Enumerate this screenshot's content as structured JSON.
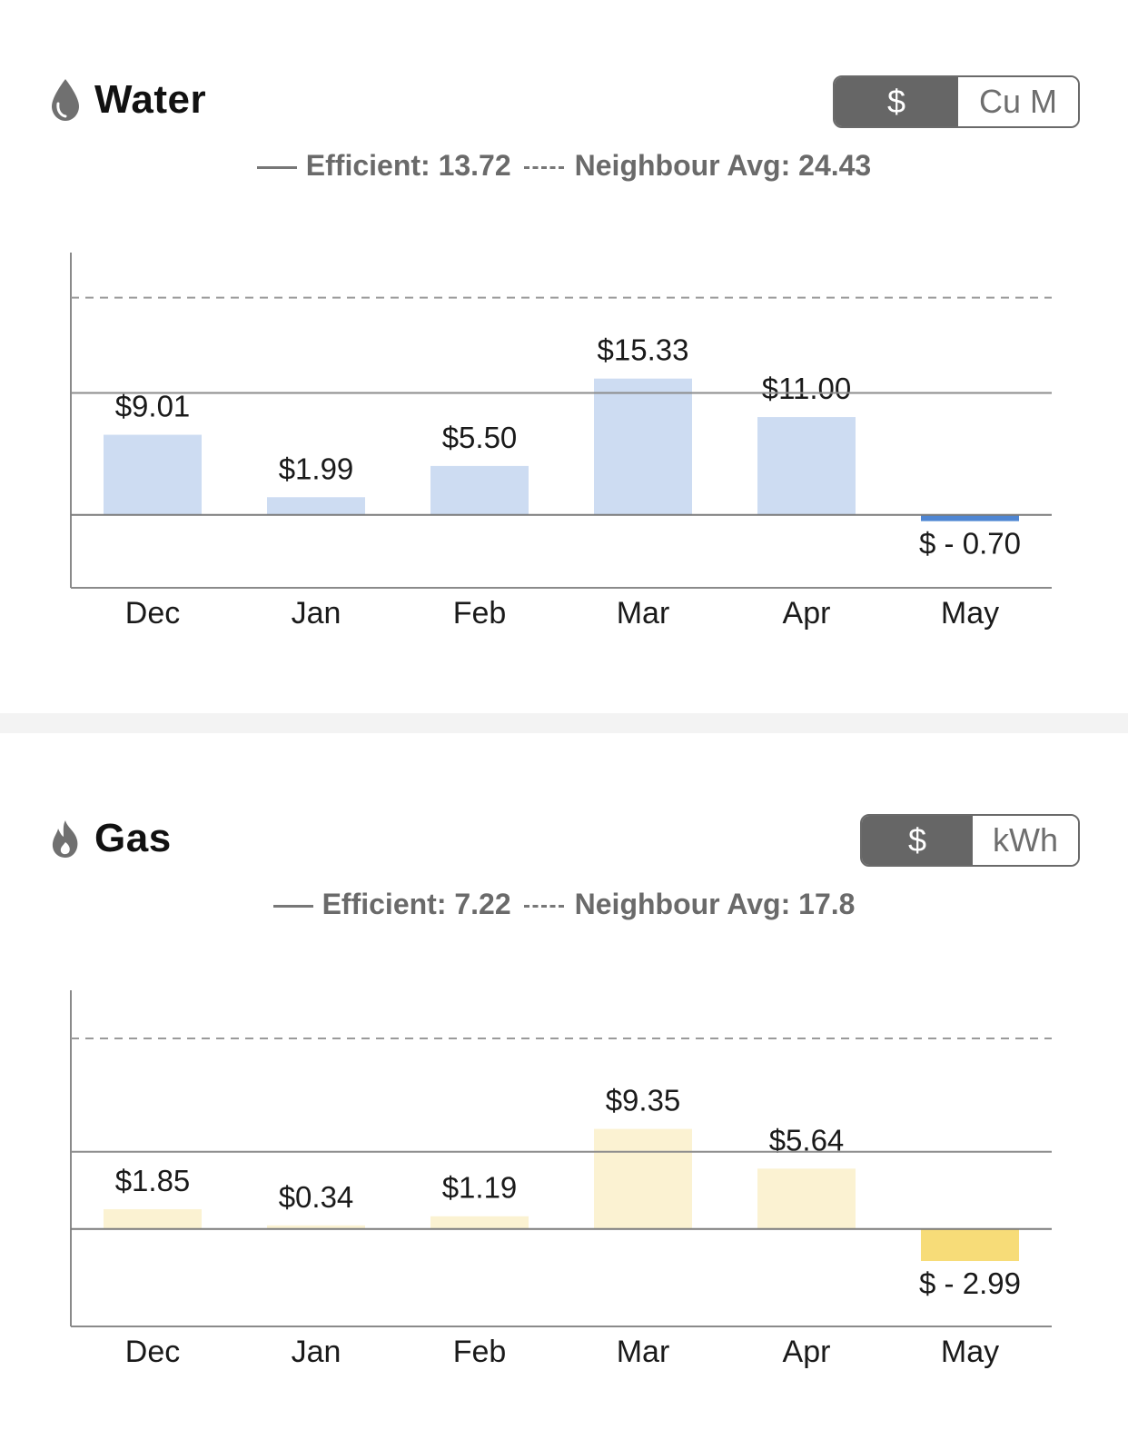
{
  "water": {
    "title": "Water",
    "icon": "water-drop-icon",
    "toggle": {
      "active": "$",
      "inactive": "Cu M"
    },
    "legend": {
      "efficient_label": "Efficient: 13.72",
      "neighbour_label": "Neighbour Avg: 24.43"
    },
    "chart_data": {
      "type": "bar",
      "categories": [
        "Dec",
        "Jan",
        "Feb",
        "Mar",
        "Apr",
        "May"
      ],
      "values": [
        9.01,
        1.99,
        5.5,
        15.33,
        11.0,
        -0.7
      ],
      "labels": [
        "$9.01",
        "$1.99",
        "$5.50",
        "$15.33",
        "$11.00",
        "$ - 0.70"
      ],
      "reference_lines": {
        "efficient": 13.72,
        "neighbour_avg": 24.43
      },
      "ylim": [
        -8.2,
        29.5
      ],
      "bar_color": "#cddcf2",
      "negative_bar_color": "#4f86d3"
    }
  },
  "gas": {
    "title": "Gas",
    "icon": "flame-icon",
    "toggle": {
      "active": "$",
      "inactive": "kWh"
    },
    "legend": {
      "efficient_label": "Efficient: 7.22",
      "neighbour_label": "Neighbour Avg: 17.8"
    },
    "chart_data": {
      "type": "bar",
      "categories": [
        "Dec",
        "Jan",
        "Feb",
        "Mar",
        "Apr",
        "May"
      ],
      "values": [
        1.85,
        0.34,
        1.19,
        9.35,
        5.64,
        -2.99
      ],
      "labels": [
        "$1.85",
        "$0.34",
        "$1.19",
        "$9.35",
        "$5.64",
        "$ - 2.99"
      ],
      "reference_lines": {
        "efficient": 7.22,
        "neighbour_avg": 17.8
      },
      "ylim": [
        -9.1,
        22.3
      ],
      "bar_color": "#fbf2d2",
      "negative_bar_color": "#f7dc78"
    }
  }
}
